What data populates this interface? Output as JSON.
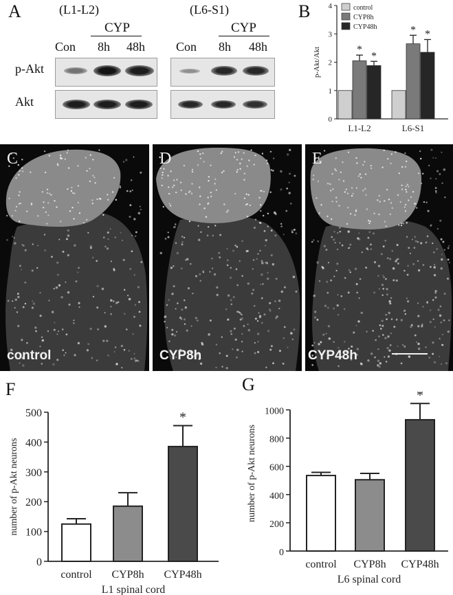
{
  "panel_a": {
    "letter": "A",
    "region_left": "(L1-L2)",
    "region_right": "(L6-S1)",
    "cyp_left": "CYP",
    "cyp_right": "CYP",
    "lanes_left": [
      "Con",
      "8h",
      "48h"
    ],
    "lanes_right": [
      "Con",
      "8h",
      "48h"
    ],
    "row_labels": [
      "p-Akt",
      "Akt"
    ],
    "band_intensity": {
      "p_akt_left": [
        0.45,
        0.95,
        0.9
      ],
      "akt_left": [
        0.9,
        0.9,
        0.9
      ],
      "p_akt_right": [
        0.3,
        0.85,
        0.85
      ],
      "akt_right": [
        0.85,
        0.85,
        0.8
      ]
    }
  },
  "panel_b": {
    "letter": "B"
  },
  "micrographs": [
    {
      "letter": "C",
      "label": "control"
    },
    {
      "letter": "D",
      "label": "CYP8h"
    },
    {
      "letter": "E",
      "label": "CYP48h"
    }
  ],
  "panel_f": {
    "letter": "F"
  },
  "panel_g": {
    "letter": "G"
  },
  "colors": {
    "control": "#ffffff",
    "cyp8h": "#8c8c8c",
    "cyp48h": "#4a4a4a",
    "b_control": "#cfcfcf",
    "b_cyp8h": "#7a7a7a",
    "b_cyp48h": "#262626"
  },
  "chart_data": [
    {
      "id": "B",
      "type": "bar",
      "categories": [
        "L1-L2",
        "L6-S1"
      ],
      "series": [
        {
          "name": "control",
          "values": [
            1.0,
            1.0
          ],
          "errors": [
            0,
            0
          ]
        },
        {
          "name": "CYP8h",
          "values": [
            2.05,
            2.65
          ],
          "errors": [
            0.2,
            0.3
          ]
        },
        {
          "name": "CYP48h",
          "values": [
            1.88,
            2.35
          ],
          "errors": [
            0.15,
            0.45
          ]
        }
      ],
      "significance": [
        [
          false,
          true,
          true
        ],
        [
          false,
          true,
          true
        ]
      ],
      "ylabel": "p-Akt/Akt",
      "yticks": [
        0,
        1,
        2,
        3,
        4
      ],
      "ylim": [
        0,
        4
      ],
      "legend_position": "top-left",
      "grid": false
    },
    {
      "id": "F",
      "type": "bar",
      "categories": [
        "control",
        "CYP8h",
        "CYP48h"
      ],
      "values": [
        125,
        185,
        385
      ],
      "errors": [
        18,
        45,
        70
      ],
      "significance": [
        false,
        false,
        true
      ],
      "xlabel": "L1 spinal cord",
      "ylabel": "number of p-Akt neurons",
      "yticks": [
        0,
        100,
        200,
        300,
        400,
        500
      ],
      "ylim": [
        0,
        500
      ],
      "grid": false
    },
    {
      "id": "G",
      "type": "bar",
      "categories": [
        "control",
        "CYP8h",
        "CYP48h"
      ],
      "values": [
        535,
        505,
        930
      ],
      "errors": [
        22,
        45,
        115
      ],
      "significance": [
        false,
        false,
        true
      ],
      "xlabel": "L6 spinal cord",
      "ylabel": "number of p-Akt neurons",
      "yticks": [
        0,
        200,
        400,
        600,
        800,
        1000
      ],
      "ylim": [
        0,
        1100
      ],
      "grid": false
    }
  ]
}
